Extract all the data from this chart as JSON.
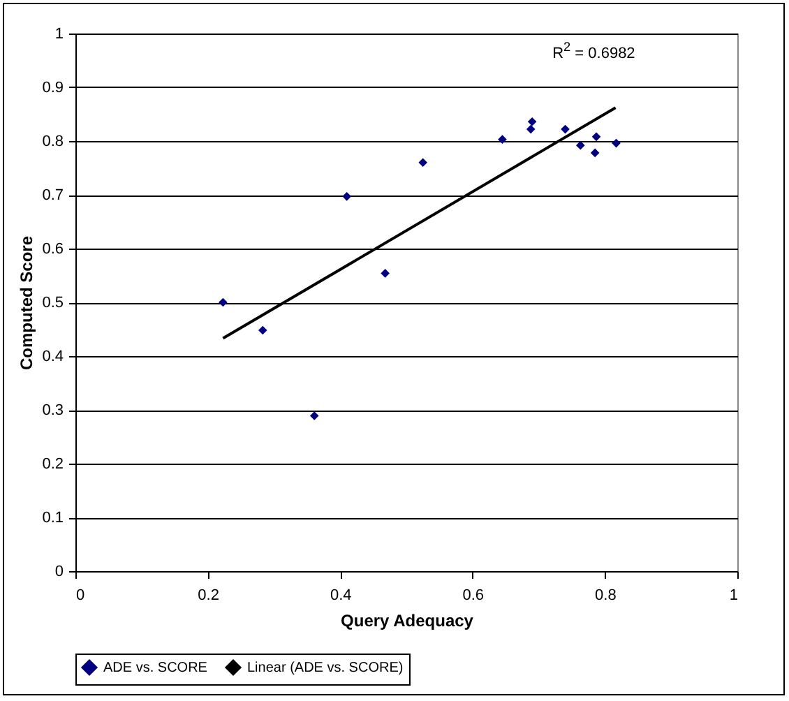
{
  "chart_data": {
    "type": "scatter",
    "xlabel": "Query Adequacy",
    "ylabel": "Computed Score",
    "xlim": [
      0,
      1
    ],
    "xticks": [
      0,
      0.2,
      0.4,
      0.6,
      0.8,
      1
    ],
    "ylim": [
      0,
      1
    ],
    "yticks": [
      0,
      0.1,
      0.2,
      0.3,
      0.4,
      0.5,
      0.6,
      0.7,
      0.8,
      0.9,
      1
    ],
    "grid": "y",
    "legend": "bottom",
    "annotations": [
      "R$^{2}$ = 0.6982"
    ],
    "series": [
      {
        "name": "ADE vs. SCORE",
        "marker": "diamond",
        "color": "#000080",
        "x": [
          0.223,
          0.283,
          0.361,
          0.41,
          0.468,
          0.525,
          0.645,
          0.688,
          0.69,
          0.74,
          0.763,
          0.785,
          0.787,
          0.817
        ],
        "values": [
          0.5,
          0.448,
          0.289,
          0.697,
          0.554,
          0.76,
          0.803,
          0.822,
          0.836,
          0.822,
          0.792,
          0.778,
          0.808,
          0.796
        ]
      },
      {
        "name": "Linear (ADE vs. SCORE)",
        "type": "line",
        "color": "#000000",
        "line_style": "solid",
        "x": [
          0.223,
          0.816
        ],
        "values": [
          0.433,
          0.862
        ]
      }
    ]
  }
}
